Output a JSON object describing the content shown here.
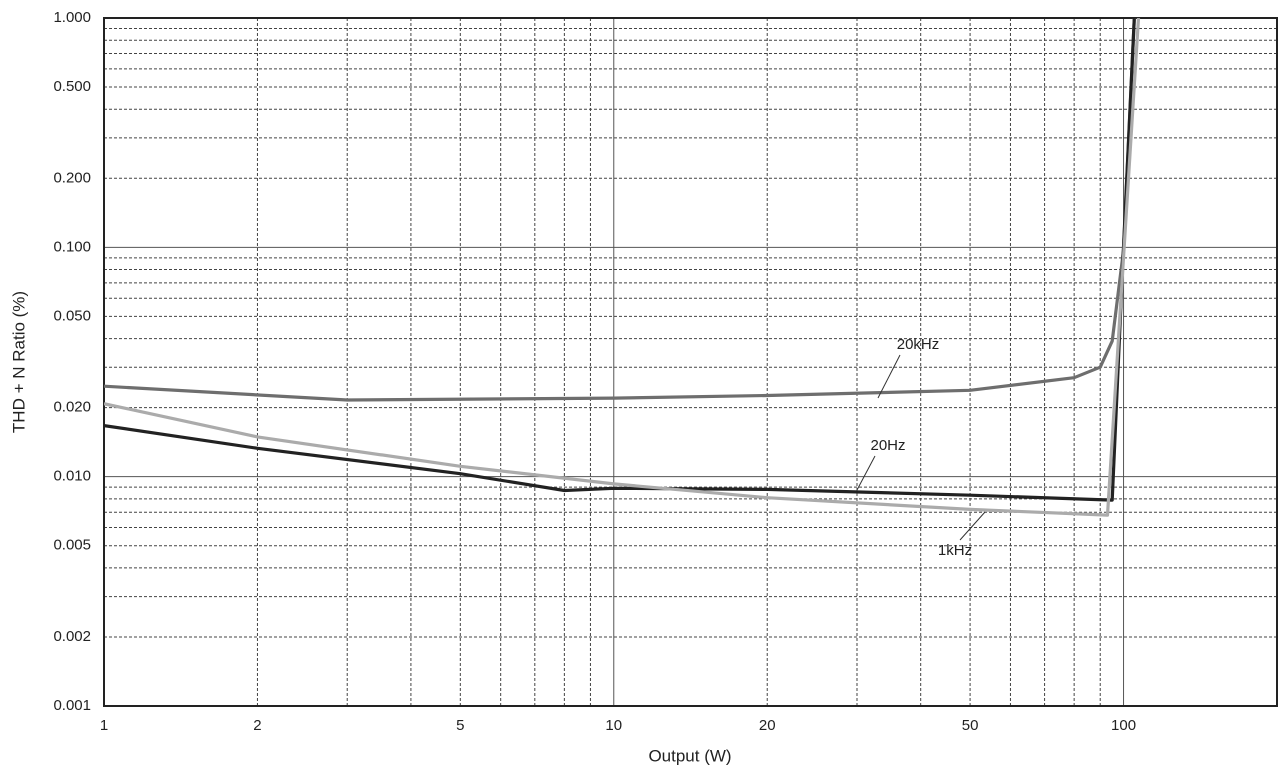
{
  "chart_data": {
    "type": "line",
    "x_label": "Output (W)",
    "y_label": "THD + N Ratio (%)",
    "log_x": true,
    "log_y": true,
    "grid": true,
    "xlim": [
      1,
      200
    ],
    "ylim": [
      0.001,
      1
    ],
    "xticks": [
      1,
      2,
      5,
      10,
      20,
      50,
      100
    ],
    "x_minor_ticks": [
      3,
      4,
      6,
      7,
      8,
      9,
      30,
      40,
      60,
      70,
      80,
      90
    ],
    "yticks": [
      {
        "value": 1,
        "label": "1.000"
      },
      {
        "value": 0.5,
        "label": "0.500"
      },
      {
        "value": 0.2,
        "label": "0.200"
      },
      {
        "value": 0.1,
        "label": "0.100"
      },
      {
        "value": 0.05,
        "label": "0.050"
      },
      {
        "value": 0.02,
        "label": "0.020"
      },
      {
        "value": 0.01,
        "label": "0.010"
      },
      {
        "value": 0.005,
        "label": "0.005"
      },
      {
        "value": 0.002,
        "label": "0.002"
      },
      {
        "value": 0.001,
        "label": "0.001"
      }
    ],
    "y_minor_ticks": [
      0.003,
      0.004,
      0.006,
      0.007,
      0.008,
      0.009,
      0.03,
      0.04,
      0.06,
      0.07,
      0.08,
      0.09,
      0.3,
      0.4,
      0.6,
      0.7,
      0.8,
      0.9
    ],
    "series": [
      {
        "name": "20kHz",
        "color": "#6e6e6e",
        "x": [
          1,
          3,
          10,
          20,
          50,
          80,
          90,
          95,
          100,
          105
        ],
        "values": [
          0.0248,
          0.0216,
          0.022,
          0.0226,
          0.0238,
          0.027,
          0.03,
          0.039,
          0.097,
          1.0
        ]
      },
      {
        "name": "20Hz",
        "color": "#222222",
        "x": [
          1,
          2,
          5,
          8,
          10,
          20,
          50,
          95,
          100,
          105
        ],
        "values": [
          0.0167,
          0.0133,
          0.0103,
          0.0087,
          0.0089,
          0.0088,
          0.0083,
          0.0079,
          0.1,
          1.0
        ]
      },
      {
        "name": "1kHz",
        "color": "#ababab",
        "x": [
          1,
          2,
          5,
          10,
          20,
          50,
          93,
          100,
          107
        ],
        "values": [
          0.0208,
          0.0149,
          0.0111,
          0.0093,
          0.0081,
          0.0072,
          0.0068,
          0.09,
          1.0
        ]
      }
    ]
  }
}
